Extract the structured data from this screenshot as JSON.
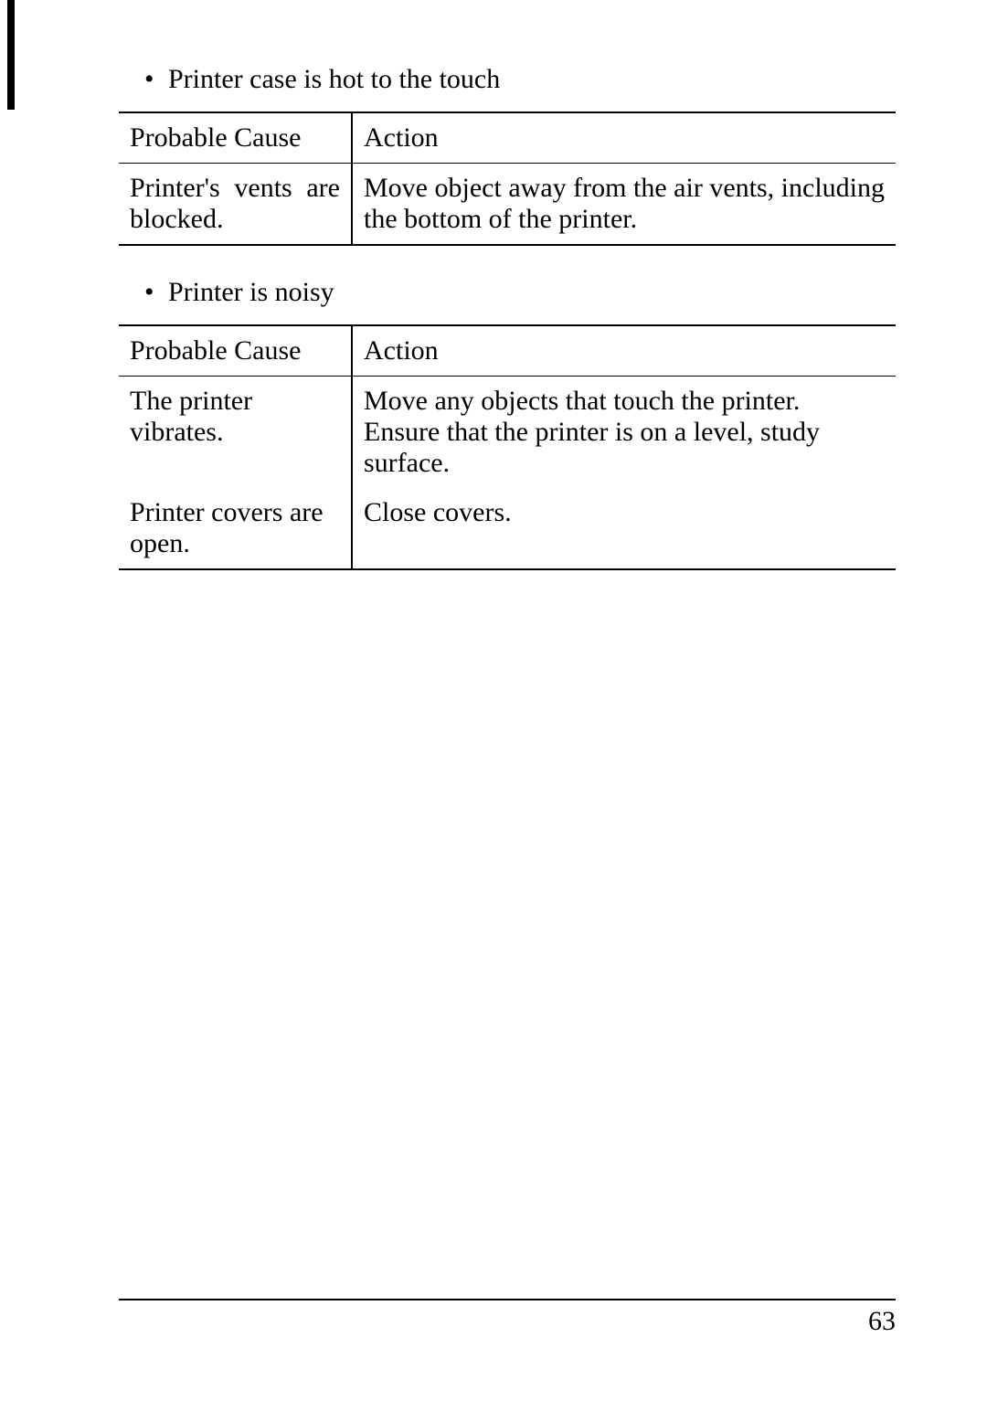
{
  "section1": {
    "bullet_text": "Printer case is hot to the touch",
    "table": {
      "header_cause": "Probable Cause",
      "header_action": "Action",
      "row1_cause": "Printer's vents are blocked.",
      "row1_action": "Move object away from the air vents, including the bottom of the printer."
    }
  },
  "section2": {
    "bullet_text": "Printer is noisy",
    "table": {
      "header_cause": "Probable Cause",
      "header_action": "Action",
      "row1_cause": "The printer vibrates.",
      "row1_action_l1": "Move any objects that touch the printer.",
      "row1_action_l2": "Ensure that the printer is on a level, study surface.",
      "row2_cause": "Printer covers are open.",
      "row2_action": "Close covers."
    }
  },
  "page_number": "63"
}
